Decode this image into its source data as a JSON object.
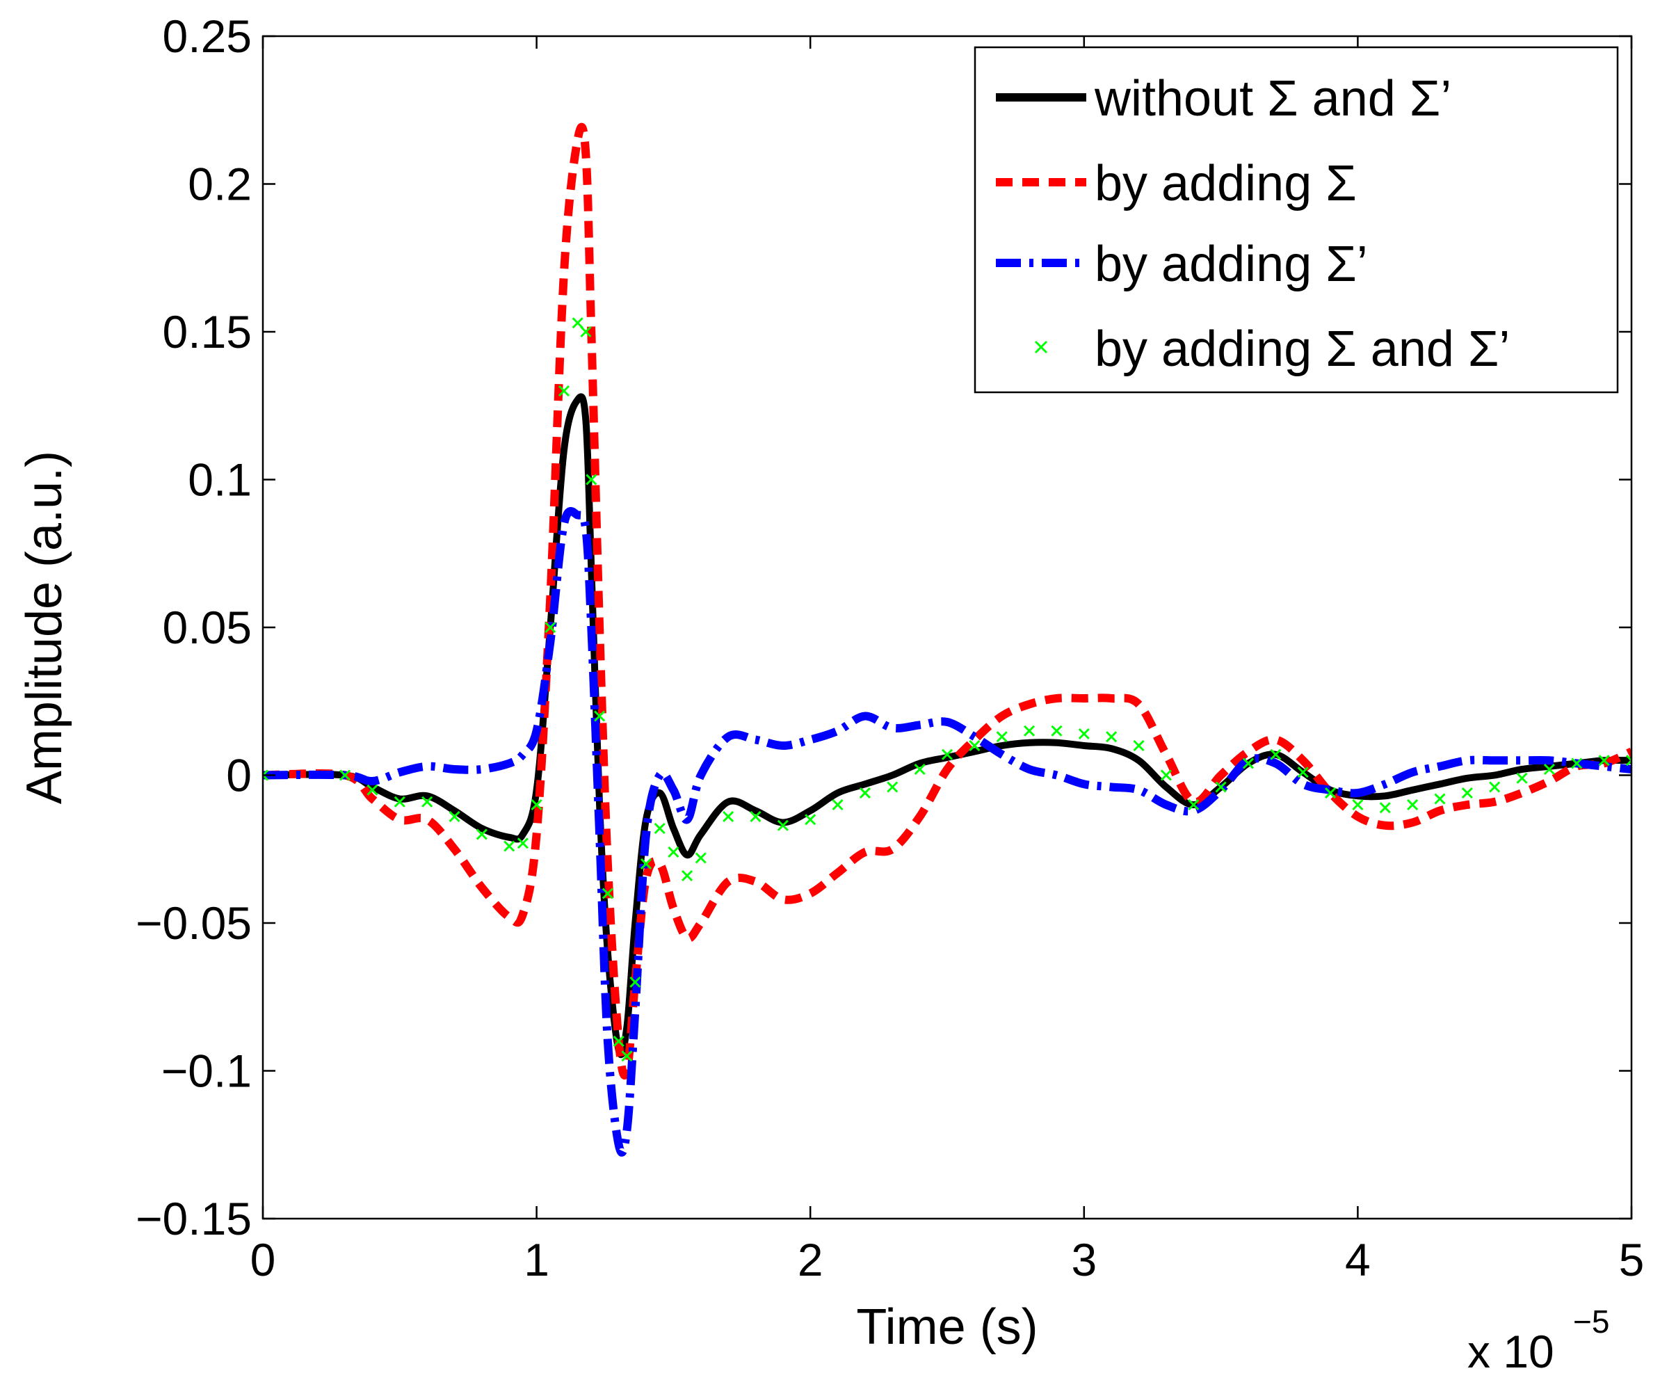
{
  "chart_data": {
    "type": "line",
    "title": "",
    "xlabel": "Time (s)",
    "ylabel": "Amplitude (a.u.)",
    "x_exponent_label": "x 10",
    "x_exponent_power": "−5",
    "xlim": [
      0,
      5
    ],
    "ylim": [
      -0.15,
      0.25
    ],
    "x_ticks": [
      0,
      1,
      2,
      3,
      4,
      5
    ],
    "x_tick_labels": [
      "0",
      "1",
      "2",
      "3",
      "4",
      "5"
    ],
    "y_ticks": [
      -0.15,
      -0.1,
      -0.05,
      0,
      0.05,
      0.1,
      0.15,
      0.2,
      0.25
    ],
    "y_tick_labels": [
      "−0.15",
      "−0.1",
      "−0.05",
      "0",
      "0.05",
      "0.1",
      "0.15",
      "0.2",
      "0.25"
    ],
    "grid": false,
    "legend_position": "top-right",
    "series": [
      {
        "name": "without Σ and Σ’",
        "color": "#000000",
        "style": "solid",
        "marker": "none",
        "x": [
          0,
          0.3,
          0.4,
          0.5,
          0.6,
          0.7,
          0.8,
          0.9,
          0.95,
          1.0,
          1.05,
          1.1,
          1.15,
          1.18,
          1.2,
          1.23,
          1.26,
          1.3,
          1.33,
          1.36,
          1.4,
          1.45,
          1.5,
          1.55,
          1.6,
          1.7,
          1.8,
          1.9,
          2.0,
          2.1,
          2.2,
          2.3,
          2.4,
          2.5,
          2.6,
          2.7,
          2.8,
          2.9,
          3.0,
          3.1,
          3.2,
          3.3,
          3.4,
          3.5,
          3.6,
          3.7,
          3.8,
          3.9,
          4.0,
          4.1,
          4.2,
          4.3,
          4.4,
          4.5,
          4.6,
          4.7,
          4.8,
          4.9,
          5.0
        ],
        "y": [
          0,
          0,
          -0.004,
          -0.008,
          -0.007,
          -0.012,
          -0.018,
          -0.021,
          -0.02,
          -0.005,
          0.05,
          0.11,
          0.127,
          0.12,
          0.07,
          -0.01,
          -0.06,
          -0.093,
          -0.085,
          -0.05,
          -0.015,
          -0.006,
          -0.018,
          -0.027,
          -0.02,
          -0.009,
          -0.012,
          -0.016,
          -0.012,
          -0.006,
          -0.003,
          0.0,
          0.004,
          0.006,
          0.008,
          0.01,
          0.011,
          0.011,
          0.01,
          0.009,
          0.005,
          -0.004,
          -0.01,
          -0.004,
          0.004,
          0.007,
          0.001,
          -0.005,
          -0.007,
          -0.007,
          -0.005,
          -0.003,
          -0.001,
          0.0,
          0.002,
          0.003,
          0.004,
          0.005,
          0.005
        ]
      },
      {
        "name": "by adding Σ",
        "color": "#ff0000",
        "style": "dashed",
        "marker": "none",
        "x": [
          0,
          0.3,
          0.4,
          0.5,
          0.6,
          0.7,
          0.8,
          0.9,
          0.95,
          1.0,
          1.05,
          1.1,
          1.15,
          1.18,
          1.2,
          1.23,
          1.26,
          1.3,
          1.33,
          1.36,
          1.4,
          1.45,
          1.5,
          1.55,
          1.6,
          1.7,
          1.8,
          1.9,
          2.0,
          2.1,
          2.2,
          2.3,
          2.4,
          2.5,
          2.6,
          2.7,
          2.8,
          2.9,
          3.0,
          3.1,
          3.2,
          3.3,
          3.4,
          3.5,
          3.6,
          3.7,
          3.8,
          3.9,
          4.0,
          4.1,
          4.2,
          4.3,
          4.4,
          4.5,
          4.6,
          4.7,
          4.8,
          4.9,
          5.0
        ],
        "y": [
          0,
          0,
          -0.008,
          -0.015,
          -0.015,
          -0.025,
          -0.038,
          -0.048,
          -0.047,
          -0.02,
          0.06,
          0.17,
          0.215,
          0.21,
          0.15,
          0.05,
          -0.03,
          -0.09,
          -0.1,
          -0.07,
          -0.035,
          -0.03,
          -0.045,
          -0.055,
          -0.05,
          -0.036,
          -0.036,
          -0.042,
          -0.04,
          -0.033,
          -0.026,
          -0.025,
          -0.014,
          0.002,
          0.012,
          0.02,
          0.024,
          0.026,
          0.026,
          0.026,
          0.024,
          0.007,
          -0.009,
          0.0,
          0.008,
          0.012,
          0.005,
          -0.006,
          -0.014,
          -0.017,
          -0.016,
          -0.012,
          -0.01,
          -0.009,
          -0.006,
          -0.002,
          0.003,
          0.004,
          0.008
        ]
      },
      {
        "name": "by adding Σ’",
        "color": "#0000ff",
        "style": "dashdot",
        "marker": "none",
        "x": [
          0,
          0.3,
          0.4,
          0.5,
          0.6,
          0.7,
          0.8,
          0.9,
          0.95,
          1.0,
          1.05,
          1.1,
          1.15,
          1.18,
          1.2,
          1.23,
          1.26,
          1.3,
          1.33,
          1.36,
          1.4,
          1.45,
          1.5,
          1.55,
          1.6,
          1.7,
          1.8,
          1.9,
          2.0,
          2.1,
          2.2,
          2.3,
          2.4,
          2.5,
          2.6,
          2.7,
          2.8,
          2.9,
          3.0,
          3.1,
          3.2,
          3.3,
          3.4,
          3.5,
          3.6,
          3.7,
          3.8,
          3.9,
          4.0,
          4.1,
          4.2,
          4.3,
          4.4,
          4.5,
          4.6,
          4.7,
          4.8,
          4.9,
          5.0
        ],
        "y": [
          0,
          0,
          -0.002,
          0.001,
          0.003,
          0.002,
          0.002,
          0.004,
          0.007,
          0.015,
          0.045,
          0.085,
          0.088,
          0.083,
          0.05,
          -0.02,
          -0.09,
          -0.125,
          -0.12,
          -0.08,
          -0.02,
          0.0,
          -0.005,
          -0.015,
          0.0,
          0.013,
          0.012,
          0.01,
          0.012,
          0.015,
          0.02,
          0.016,
          0.017,
          0.018,
          0.013,
          0.007,
          0.002,
          0.0,
          -0.003,
          -0.004,
          -0.005,
          -0.01,
          -0.012,
          -0.005,
          0.005,
          0.004,
          -0.003,
          -0.005,
          -0.006,
          -0.003,
          0.001,
          0.003,
          0.005,
          0.005,
          0.005,
          0.005,
          0.004,
          0.003,
          0.002
        ]
      },
      {
        "name": "by adding Σ and Σ’",
        "color": "#00ff00",
        "style": "none",
        "marker": "x",
        "x": [
          0,
          0.3,
          0.4,
          0.5,
          0.6,
          0.7,
          0.8,
          0.9,
          0.95,
          1.0,
          1.05,
          1.1,
          1.15,
          1.18,
          1.2,
          1.23,
          1.26,
          1.3,
          1.33,
          1.36,
          1.4,
          1.45,
          1.5,
          1.55,
          1.6,
          1.7,
          1.8,
          1.9,
          2.0,
          2.1,
          2.2,
          2.3,
          2.4,
          2.5,
          2.6,
          2.7,
          2.8,
          2.9,
          3.0,
          3.1,
          3.2,
          3.3,
          3.4,
          3.5,
          3.6,
          3.7,
          3.8,
          3.9,
          4.0,
          4.1,
          4.2,
          4.3,
          4.4,
          4.5,
          4.6,
          4.7,
          4.8,
          4.9,
          5.0
        ],
        "y": [
          0,
          0,
          -0.005,
          -0.009,
          -0.009,
          -0.014,
          -0.02,
          -0.024,
          -0.023,
          -0.01,
          0.05,
          0.13,
          0.153,
          0.15,
          0.1,
          0.02,
          -0.04,
          -0.09,
          -0.095,
          -0.07,
          -0.03,
          -0.018,
          -0.026,
          -0.034,
          -0.028,
          -0.014,
          -0.014,
          -0.017,
          -0.015,
          -0.01,
          -0.006,
          -0.004,
          0.002,
          0.007,
          0.01,
          0.013,
          0.015,
          0.015,
          0.014,
          0.013,
          0.01,
          0.0,
          -0.01,
          -0.004,
          0.004,
          0.007,
          0.001,
          -0.006,
          -0.01,
          -0.011,
          -0.01,
          -0.008,
          -0.006,
          -0.004,
          -0.001,
          0.002,
          0.004,
          0.005,
          0.005
        ]
      }
    ]
  }
}
